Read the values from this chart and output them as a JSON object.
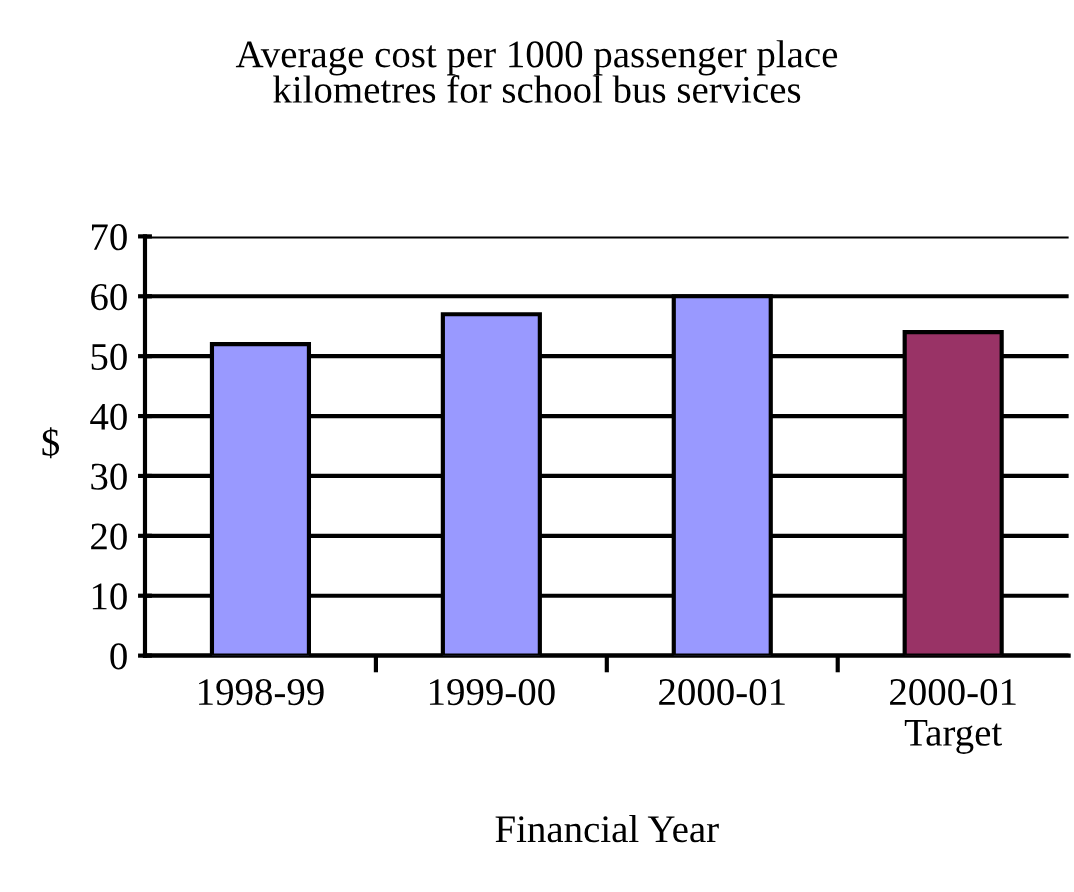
{
  "chart_data": {
    "type": "bar",
    "title": "Average cost per 1000 passenger place\nkilometres for school bus services",
    "categories": [
      "1998-99",
      "1999-00",
      "2000-01",
      "2000-01\nTarget"
    ],
    "values": [
      52,
      57,
      60,
      54
    ],
    "colors": [
      "#9999ff",
      "#9999ff",
      "#9999ff",
      "#993366"
    ],
    "xlabel": "Financial Year",
    "ylabel": "$",
    "ylim": [
      0,
      70
    ],
    "yticks": [
      0,
      10,
      20,
      30,
      40,
      50,
      60,
      70
    ],
    "grid": "y"
  }
}
